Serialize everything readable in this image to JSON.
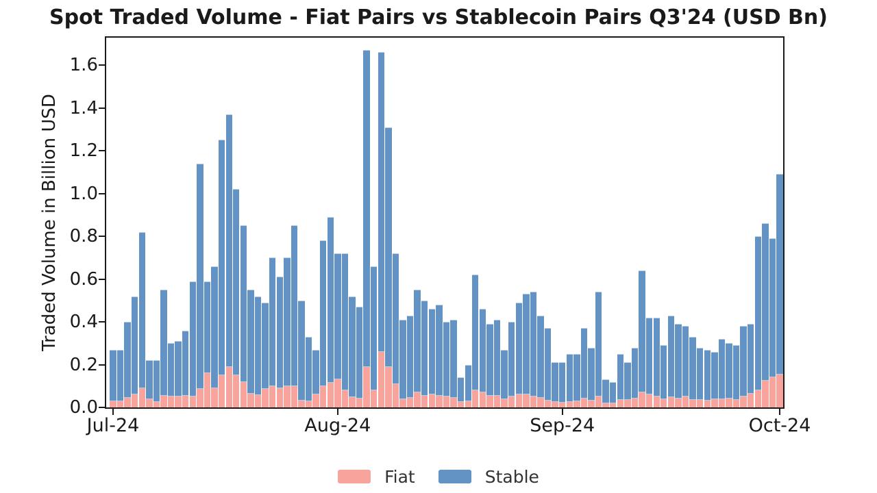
{
  "title": "Spot Traded Volume - Fiat Pairs vs Stablecoin Pairs Q3'24 (USD Bn)",
  "y_axis": {
    "label": "Traded Volume in Billion USD",
    "ticks": [
      "0.0",
      "0.2",
      "0.4",
      "0.6",
      "0.8",
      "1.0",
      "1.2",
      "1.4",
      "1.6"
    ]
  },
  "x_axis": {
    "ticks": [
      {
        "label": "Jul-24",
        "day_index": 0
      },
      {
        "label": "Aug-24",
        "day_index": 31
      },
      {
        "label": "Sep-24",
        "day_index": 62
      },
      {
        "label": "Oct-24",
        "day_index": 92
      }
    ]
  },
  "legend": [
    {
      "label": "Fiat",
      "color": "#F9A39D"
    },
    {
      "label": "Stable",
      "color": "#6392C4"
    }
  ],
  "colors": {
    "fiat": "#F9A39D",
    "stable": "#6392C4",
    "axis": "#1a1a1a",
    "background": "#ffffff"
  },
  "chart_data": {
    "type": "bar",
    "stacked": true,
    "title": "Spot Traded Volume - Fiat Pairs vs Stablecoin Pairs Q3'24 (USD Bn)",
    "xlabel": "",
    "ylabel": "Traded Volume in Billion USD",
    "ylim": [
      0,
      1.73
    ],
    "grid": false,
    "legend_position": "bottom-center",
    "xtick_labels": [
      "Jul-24",
      "Aug-24",
      "Sep-24",
      "Oct-24"
    ],
    "x": [
      "2024-07-01",
      "2024-07-02",
      "2024-07-03",
      "2024-07-04",
      "2024-07-05",
      "2024-07-06",
      "2024-07-07",
      "2024-07-08",
      "2024-07-09",
      "2024-07-10",
      "2024-07-11",
      "2024-07-12",
      "2024-07-13",
      "2024-07-14",
      "2024-07-15",
      "2024-07-16",
      "2024-07-17",
      "2024-07-18",
      "2024-07-19",
      "2024-07-20",
      "2024-07-21",
      "2024-07-22",
      "2024-07-23",
      "2024-07-24",
      "2024-07-25",
      "2024-07-26",
      "2024-07-27",
      "2024-07-28",
      "2024-07-29",
      "2024-07-30",
      "2024-07-31",
      "2024-08-01",
      "2024-08-02",
      "2024-08-03",
      "2024-08-04",
      "2024-08-05",
      "2024-08-06",
      "2024-08-07",
      "2024-08-08",
      "2024-08-09",
      "2024-08-10",
      "2024-08-11",
      "2024-08-12",
      "2024-08-13",
      "2024-08-14",
      "2024-08-15",
      "2024-08-16",
      "2024-08-17",
      "2024-08-18",
      "2024-08-19",
      "2024-08-20",
      "2024-08-21",
      "2024-08-22",
      "2024-08-23",
      "2024-08-24",
      "2024-08-25",
      "2024-08-26",
      "2024-08-27",
      "2024-08-28",
      "2024-08-29",
      "2024-08-30",
      "2024-08-31",
      "2024-09-01",
      "2024-09-02",
      "2024-09-03",
      "2024-09-04",
      "2024-09-05",
      "2024-09-06",
      "2024-09-07",
      "2024-09-08",
      "2024-09-09",
      "2024-09-10",
      "2024-09-11",
      "2024-09-12",
      "2024-09-13",
      "2024-09-14",
      "2024-09-15",
      "2024-09-16",
      "2024-09-17",
      "2024-09-18",
      "2024-09-19",
      "2024-09-20",
      "2024-09-21",
      "2024-09-22",
      "2024-09-23",
      "2024-09-24",
      "2024-09-25",
      "2024-09-26",
      "2024-09-27",
      "2024-09-28",
      "2024-09-29",
      "2024-09-30",
      "2024-10-01"
    ],
    "series": [
      {
        "name": "Fiat",
        "color": "#F9A39D",
        "values": [
          0.03,
          0.028,
          0.045,
          0.06,
          0.09,
          0.038,
          0.027,
          0.055,
          0.05,
          0.052,
          0.056,
          0.05,
          0.085,
          0.16,
          0.09,
          0.15,
          0.19,
          0.15,
          0.12,
          0.065,
          0.058,
          0.088,
          0.098,
          0.09,
          0.1,
          0.1,
          0.033,
          0.03,
          0.06,
          0.1,
          0.115,
          0.13,
          0.08,
          0.048,
          0.043,
          0.19,
          0.08,
          0.26,
          0.19,
          0.11,
          0.037,
          0.046,
          0.07,
          0.053,
          0.06,
          0.053,
          0.05,
          0.046,
          0.027,
          0.03,
          0.08,
          0.07,
          0.053,
          0.053,
          0.037,
          0.05,
          0.06,
          0.06,
          0.05,
          0.046,
          0.032,
          0.027,
          0.021,
          0.025,
          0.029,
          0.043,
          0.032,
          0.05,
          0.018,
          0.018,
          0.035,
          0.035,
          0.043,
          0.071,
          0.061,
          0.05,
          0.037,
          0.048,
          0.043,
          0.05,
          0.035,
          0.035,
          0.032,
          0.037,
          0.039,
          0.043,
          0.035,
          0.05,
          0.064,
          0.08,
          0.125,
          0.142,
          0.153
        ]
      },
      {
        "name": "Stable",
        "color": "#6392C4",
        "values": [
          0.24,
          0.242,
          0.355,
          0.46,
          0.73,
          0.182,
          0.193,
          0.495,
          0.25,
          0.258,
          0.304,
          0.54,
          1.055,
          0.43,
          0.57,
          1.1,
          1.18,
          0.87,
          0.73,
          0.485,
          0.462,
          0.402,
          0.602,
          0.52,
          0.6,
          0.75,
          0.467,
          0.3,
          0.21,
          0.68,
          0.775,
          0.59,
          0.64,
          0.472,
          0.427,
          1.48,
          0.58,
          1.4,
          1.12,
          0.61,
          0.373,
          0.384,
          0.48,
          0.447,
          0.4,
          0.427,
          0.35,
          0.364,
          0.113,
          0.17,
          0.54,
          0.39,
          0.337,
          0.357,
          0.233,
          0.35,
          0.43,
          0.47,
          0.49,
          0.384,
          0.338,
          0.183,
          0.189,
          0.225,
          0.221,
          0.327,
          0.248,
          0.49,
          0.112,
          0.102,
          0.215,
          0.175,
          0.237,
          0.569,
          0.359,
          0.37,
          0.253,
          0.382,
          0.347,
          0.33,
          0.295,
          0.245,
          0.238,
          0.223,
          0.281,
          0.257,
          0.255,
          0.33,
          0.326,
          0.72,
          0.735,
          0.648,
          0.937
        ]
      }
    ]
  }
}
